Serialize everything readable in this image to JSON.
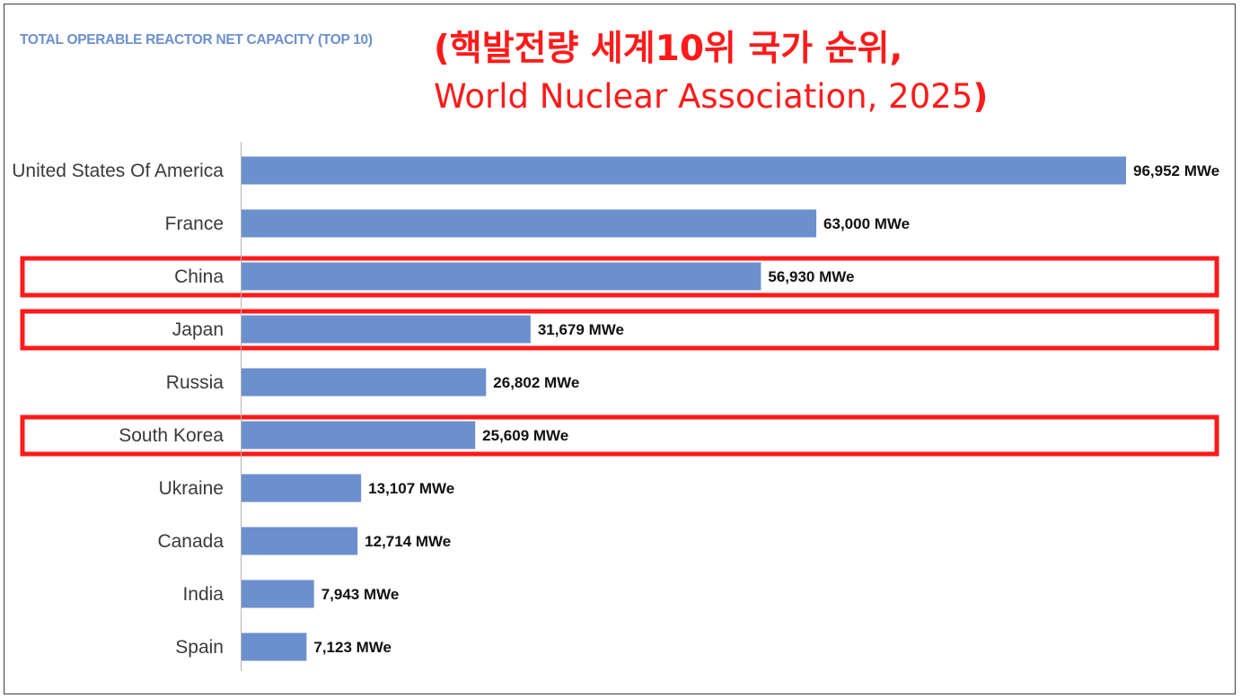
{
  "chart_data": {
    "type": "bar",
    "orientation": "horizontal",
    "title": "TOTAL OPERABLE REACTOR NET CAPACITY (TOP 10)",
    "categories": [
      "United States Of America",
      "France",
      "China",
      "Japan",
      "Russia",
      "South Korea",
      "Ukraine",
      "Canada",
      "India",
      "Spain"
    ],
    "values": [
      96952,
      63000,
      56930,
      31679,
      26802,
      25609,
      13107,
      12714,
      7943,
      7123
    ],
    "value_labels": [
      "96,952 MWe",
      "63,000 MWe",
      "56,930 MWe",
      "31,679 MWe",
      "26,802 MWe",
      "25,609 MWe",
      "13,107 MWe",
      "12,714 MWe",
      "7,943 MWe",
      "7,123 MWe"
    ],
    "xlim": [
      0,
      96952
    ],
    "grid": false,
    "highlighted_categories": [
      "China",
      "Japan",
      "South Korea"
    ]
  },
  "overlay": {
    "line1": "(핵발전량 세계10위 국가 순위,",
    "line2_text": "World Nuclear Association, 2025",
    "line2_close": ")"
  },
  "colors": {
    "bar": "#6c8fcd",
    "title": "#6c8fcd",
    "highlight": "#ff1a1a",
    "overlay_text": "#ff1a1a",
    "axis": "#b5b5b5",
    "frame": "#3c3c3c"
  }
}
